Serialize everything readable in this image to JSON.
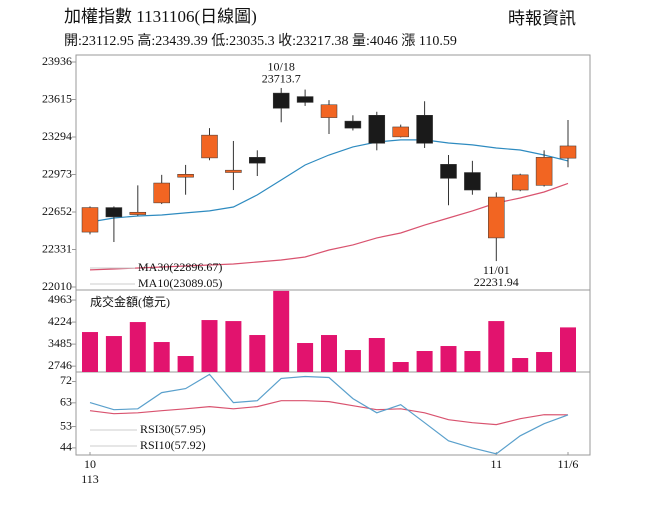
{
  "title": "加權指數 1131106(日線圖)",
  "source": "時報資訊",
  "info": "開:23112.95 高:23439.39 低:23035.3 收:23217.38 量:4046 漲 110.59",
  "chart_data": [
    {
      "type": "candlestick",
      "categories": [
        "10",
        null,
        null,
        null,
        null,
        null,
        null,
        null,
        null,
        null,
        null,
        null,
        null,
        null,
        null,
        null,
        null,
        "11",
        null,
        null,
        "11/6"
      ],
      "year": "113",
      "open": [
        22480,
        22690,
        22630,
        22730,
        22950,
        23115,
        22990,
        23120,
        23670,
        23640,
        23460,
        23430,
        23480,
        23295,
        23480,
        23060,
        22990,
        22430,
        22840,
        22880,
        23112.95
      ],
      "high": [
        22700,
        22700,
        22880,
        22970,
        23055,
        23370,
        23260,
        23180,
        23713.7,
        23700,
        23610,
        23480,
        23510,
        23400,
        23600,
        23140,
        23090,
        22820,
        22980,
        23180,
        23439.39
      ],
      "low": [
        22460,
        22395,
        22620,
        22720,
        22800,
        23095,
        22840,
        22960,
        23420,
        23560,
        23320,
        23350,
        23180,
        23290,
        23200,
        22710,
        22800,
        22231.94,
        22830,
        22870,
        23035.3
      ],
      "close": [
        22690,
        22610,
        22650,
        22900,
        22975,
        23310,
        23010,
        23070,
        23540,
        23590,
        23570,
        23370,
        23240,
        23380,
        23240,
        22940,
        22840,
        22780,
        22970,
        23120,
        23217.38
      ],
      "up_color": "#f26522",
      "down_color": "#1a1a1a",
      "series": [
        {
          "name": "MA30(22896.67)",
          "color": "#d9536f",
          "values": [
            22156,
            22164,
            22173,
            22181,
            22190,
            22198,
            22207,
            22224,
            22241,
            22267,
            22327,
            22370,
            22430,
            22472,
            22540,
            22601,
            22661,
            22729,
            22772,
            22823,
            22896.67
          ]
        },
        {
          "name": "MA10(23089.05)",
          "color": "#2e8bc0",
          "values": [
            22566,
            22601,
            22618,
            22626,
            22644,
            22661,
            22695,
            22798,
            22926,
            23054,
            23140,
            23209,
            23251,
            23269,
            23269,
            23243,
            23226,
            23200,
            23183,
            23140,
            23089.05
          ]
        }
      ],
      "annotations": [
        {
          "date": "10/18",
          "value": 23713.7
        },
        {
          "date": "11/01",
          "value": 22231.94
        }
      ],
      "ylim": [
        22010,
        23936
      ],
      "yticks": [
        23936,
        23615,
        23294,
        22973,
        22652,
        22331,
        22010
      ]
    },
    {
      "type": "bar",
      "title": "成交金額(億元)",
      "color": "#e2136e",
      "values": [
        3890,
        3756,
        4225,
        3555,
        3086,
        4292,
        4258,
        3790,
        5270,
        3522,
        3790,
        3287,
        3690,
        2885,
        3254,
        3421,
        3254,
        4258,
        3019,
        3220,
        4046
      ],
      "ylim": [
        2550,
        5300
      ],
      "yticks": [
        4963,
        4224,
        3485,
        2746
      ]
    },
    {
      "type": "line",
      "series": [
        {
          "name": "RSI30(57.95)",
          "color": "#d9536f",
          "values": [
            59.7,
            58.4,
            58.8,
            59.7,
            60.5,
            61.4,
            60.5,
            61.4,
            63.9,
            63.9,
            63.5,
            61.8,
            60.1,
            60.5,
            58.8,
            55.9,
            54.6,
            53.8,
            56.3,
            58.0,
            57.95
          ]
        },
        {
          "name": "RSI10(57.92)",
          "color": "#5aa0cc",
          "values": [
            63.1,
            60.1,
            60.5,
            67.3,
            69.0,
            75.0,
            63.1,
            63.9,
            73.3,
            74.1,
            73.7,
            64.8,
            58.8,
            62.2,
            54.6,
            47.0,
            44.0,
            41.5,
            49.1,
            54.2,
            57.92
          ]
        }
      ],
      "ylim": [
        41,
        76
      ],
      "yticks": [
        72,
        63,
        53,
        44
      ]
    }
  ]
}
